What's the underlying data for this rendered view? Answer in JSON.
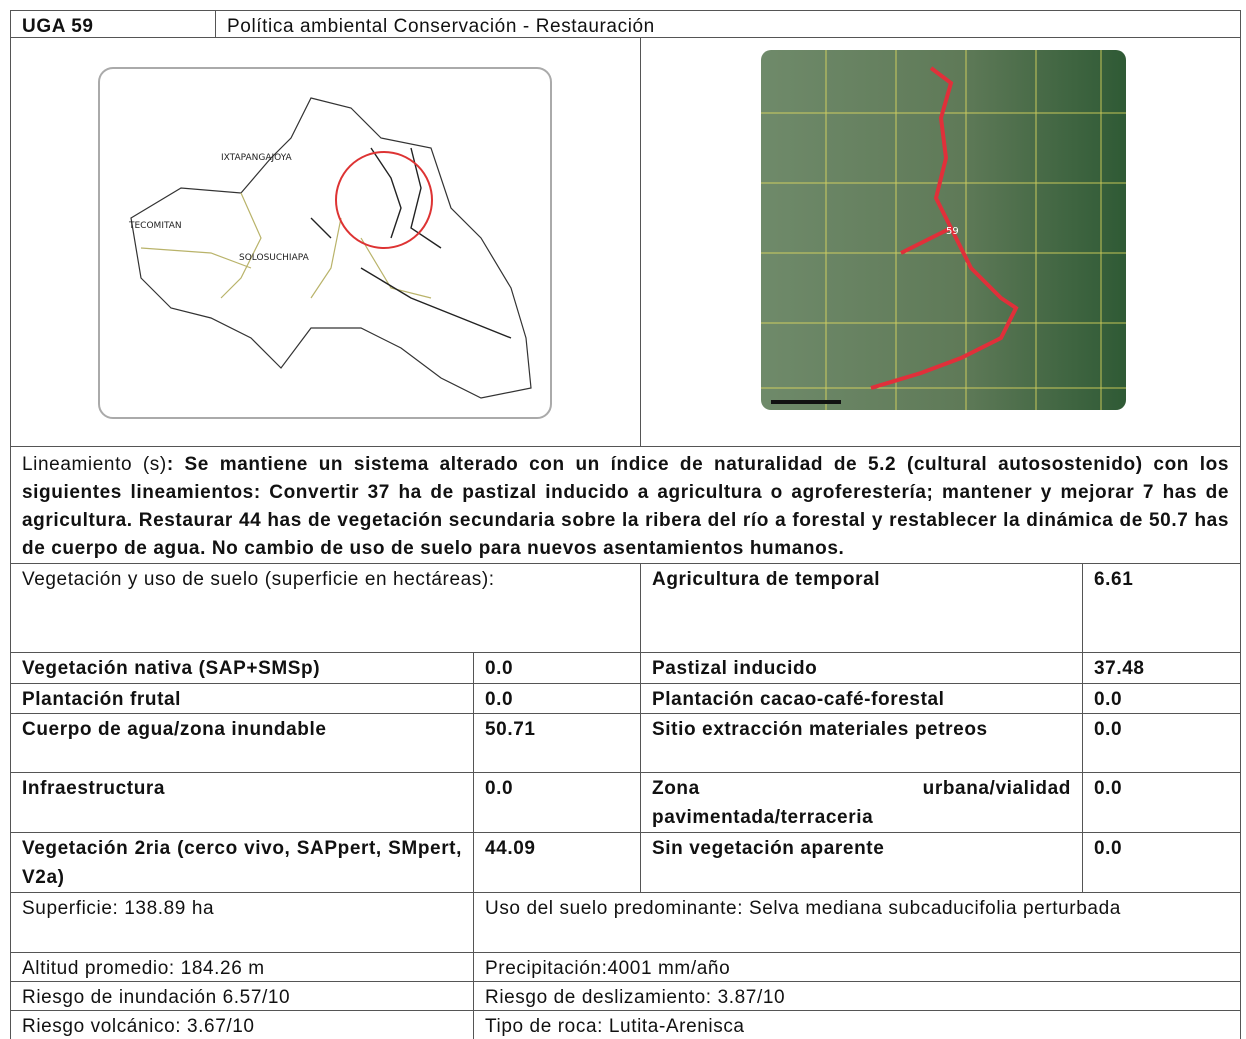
{
  "header": {
    "uga": "UGA 59",
    "policy": "Política ambiental Conservación - Restauración"
  },
  "maps": {
    "left_labels": [
      "IXTAPANGAJOYA",
      "TECOMITAN",
      "SOLOSUCHIAPA"
    ],
    "right_labels": [
      "59"
    ]
  },
  "lineamiento": {
    "label": "Lineamiento (s)",
    "text": ": Se mantiene un sistema alterado con un índice de naturalidad de 5.2 (cultural autosostenido) con los siguientes lineamientos: Convertir 37 ha de pastizal inducido a agricultura o agroferestería; mantener y mejorar 7 has de agricultura. Restaurar 44 has de vegetación secundaria sobre la ribera del río a forestal y restablecer la dinámica de 50.7 has de cuerpo de agua. No cambio de uso de suelo para nuevos asentamientos humanos."
  },
  "land_use": {
    "heading": "Vegetación y uso de suelo (superficie en hectáreas):",
    "left": [
      [
        "Vegetación nativa (SAP+SMSp)",
        "0.0"
      ],
      [
        "Plantación frutal",
        "0.0"
      ],
      [
        "Cuerpo de agua/zona inundable",
        "50.71"
      ],
      [
        "Infraestructura",
        "0.0"
      ],
      [
        "Vegetación 2ria (cerco vivo, SAPpert, SMpert, V2a)",
        "44.09"
      ]
    ],
    "right": [
      [
        "Agricultura de temporal",
        "6.61"
      ],
      [
        "Pastizal inducido",
        "37.48"
      ],
      [
        "Plantación cacao-café-forestal",
        "0.0"
      ],
      [
        "Sitio extracción materiales petreos",
        "0.0"
      ],
      [
        "Zona urbana/vialidad pavimentada/terraceria",
        "0.0"
      ],
      [
        "Sin vegetación aparente",
        "0.0"
      ]
    ]
  },
  "summary": {
    "rows": [
      [
        "Superficie: 138.89 ha",
        "Uso del suelo predominante: Selva mediana subcaducifolia perturbada"
      ],
      [
        "Altitud promedio: 184.26 m",
        "Precipitación:4001 mm/año"
      ],
      [
        "Riesgo de inundación 6.57/10",
        "Riesgo de deslizamiento: 3.87/10"
      ],
      [
        "Riesgo volcánico: 3.67/10",
        "Tipo de roca: Lutita-Arenisca"
      ]
    ]
  }
}
